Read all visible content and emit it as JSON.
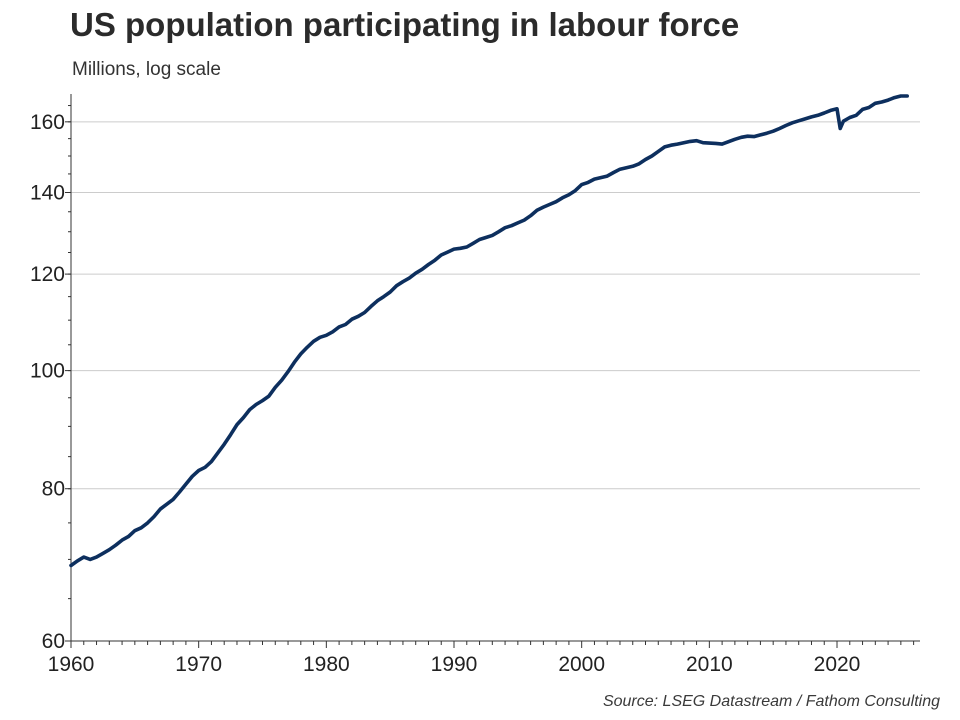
{
  "header": {
    "title": "US population participating in labour force",
    "subtitle": "Millions, log scale"
  },
  "footer": {
    "source": "Source: LSEG Datastream / Fathom Consulting"
  },
  "colors": {
    "series": "#0d2f5e",
    "grid": "#cccccc",
    "axis": "#333333"
  },
  "chart_data": {
    "type": "line",
    "title": "US population participating in labour force",
    "subtitle": "Millions, log scale",
    "xlabel": "",
    "ylabel": "",
    "y_scale": "log",
    "xlim": [
      1960,
      2026.5
    ],
    "ylim": [
      60,
      168
    ],
    "x_ticks": [
      1960,
      1970,
      1980,
      1990,
      2000,
      2010,
      2020
    ],
    "y_ticks": [
      60,
      80,
      100,
      120,
      140,
      160
    ],
    "grid": "horizontal",
    "legend": "none",
    "series": [
      {
        "x": [
          1960.0,
          1960.5,
          1961.0,
          1961.5,
          1962.0,
          1962.5,
          1963.0,
          1963.5,
          1964.0,
          1964.5,
          1965.0,
          1965.5,
          1966.0,
          1966.5,
          1967.0,
          1967.5,
          1968.0,
          1968.5,
          1969.0,
          1969.5,
          1970.0,
          1970.5,
          1971.0,
          1971.5,
          1972.0,
          1972.5,
          1973.0,
          1973.5,
          1974.0,
          1974.5,
          1975.0,
          1975.5,
          1976.0,
          1976.5,
          1977.0,
          1977.5,
          1978.0,
          1978.5,
          1979.0,
          1979.5,
          1980.0,
          1980.5,
          1981.0,
          1981.5,
          1982.0,
          1982.5,
          1983.0,
          1983.5,
          1984.0,
          1984.5,
          1985.0,
          1985.5,
          1986.0,
          1986.5,
          1987.0,
          1987.5,
          1988.0,
          1988.5,
          1989.0,
          1989.5,
          1990.0,
          1990.5,
          1991.0,
          1991.5,
          1992.0,
          1992.5,
          1993.0,
          1993.5,
          1994.0,
          1994.5,
          1995.0,
          1995.5,
          1996.0,
          1996.5,
          1997.0,
          1997.5,
          1998.0,
          1998.5,
          1999.0,
          1999.5,
          2000.0,
          2000.5,
          2001.0,
          2001.5,
          2002.0,
          2002.5,
          2003.0,
          2003.5,
          2004.0,
          2004.5,
          2005.0,
          2005.5,
          2006.0,
          2006.5,
          2007.0,
          2007.5,
          2008.0,
          2008.5,
          2009.0,
          2009.5,
          2010.0,
          2010.5,
          2011.0,
          2011.5,
          2012.0,
          2012.5,
          2013.0,
          2013.5,
          2014.0,
          2014.5,
          2015.0,
          2015.5,
          2016.0,
          2016.5,
          2017.0,
          2017.5,
          2018.0,
          2018.5,
          2019.0,
          2019.5,
          2020.0,
          2020.25,
          2020.5,
          2021.0,
          2021.5,
          2022.0,
          2022.5,
          2023.0,
          2023.5,
          2024.0,
          2024.5,
          2025.0,
          2025.25,
          2025.5
        ],
        "y": [
          69.2,
          69.8,
          70.3,
          70.0,
          70.3,
          70.8,
          71.3,
          71.9,
          72.6,
          73.1,
          73.9,
          74.3,
          75.0,
          75.9,
          77.0,
          77.7,
          78.4,
          79.5,
          80.7,
          81.9,
          82.8,
          83.3,
          84.2,
          85.6,
          87.0,
          88.6,
          90.3,
          91.5,
          92.9,
          93.8,
          94.5,
          95.3,
          96.9,
          98.2,
          99.8,
          101.6,
          103.2,
          104.5,
          105.7,
          106.5,
          106.9,
          107.6,
          108.6,
          109.1,
          110.2,
          110.8,
          111.6,
          112.9,
          114.1,
          115.0,
          116.0,
          117.4,
          118.3,
          119.1,
          120.2,
          121.1,
          122.2,
          123.2,
          124.4,
          125.1,
          125.8,
          126.0,
          126.3,
          127.2,
          128.1,
          128.6,
          129.1,
          130.0,
          131.0,
          131.5,
          132.2,
          132.9,
          134.0,
          135.4,
          136.2,
          136.9,
          137.6,
          138.6,
          139.4,
          140.5,
          142.1,
          142.7,
          143.6,
          144.0,
          144.4,
          145.4,
          146.3,
          146.7,
          147.1,
          147.8,
          149.0,
          150.0,
          151.3,
          152.6,
          153.1,
          153.4,
          153.8,
          154.2,
          154.4,
          153.8,
          153.7,
          153.6,
          153.4,
          154.1,
          154.8,
          155.4,
          155.7,
          155.6,
          156.1,
          156.6,
          157.2,
          158.0,
          158.9,
          159.7,
          160.3,
          160.9,
          161.5,
          162.0,
          162.7,
          163.5,
          164.0,
          158.0,
          160.2,
          161.3,
          162.0,
          163.8,
          164.4,
          165.7,
          166.1,
          166.7,
          167.5,
          168.0,
          168.0,
          168.0
        ],
        "color": "#0d2f5e"
      }
    ]
  }
}
